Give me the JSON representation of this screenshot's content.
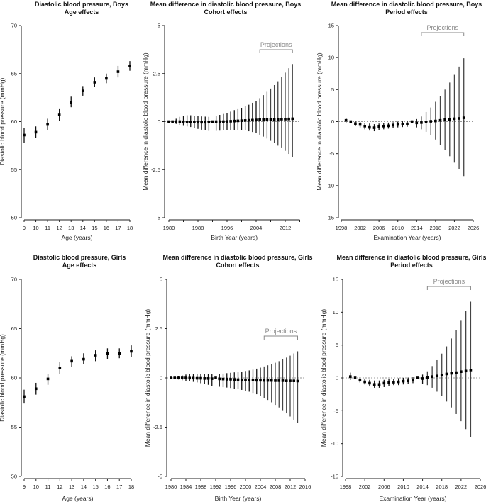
{
  "chart_data": [
    {
      "type": "scatter",
      "title": [
        "Diastolic blood pressure, Boys",
        "Age effects"
      ],
      "xlabel": "Age (years)",
      "ylabel": "Diastolic blood pressure (mmHg)",
      "xlim": [
        9,
        18
      ],
      "ylim": [
        50,
        70
      ],
      "yticks": [
        50,
        55,
        60,
        65,
        70
      ],
      "xticks": [
        9,
        10,
        11,
        12,
        13,
        14,
        15,
        16,
        17,
        18
      ],
      "xtick_labels": [
        "9",
        "10",
        "11",
        "12",
        "13",
        "14",
        "15",
        "16",
        "17",
        "18"
      ],
      "x_start": 9,
      "values": [
        58.6,
        58.9,
        59.7,
        60.7,
        62.0,
        63.2,
        64.1,
        64.5,
        65.2,
        65.8
      ],
      "lower": [
        57.8,
        58.3,
        59.1,
        60.1,
        61.5,
        62.7,
        63.6,
        64.0,
        64.6,
        65.3
      ],
      "upper": [
        59.3,
        59.5,
        60.3,
        61.3,
        62.6,
        63.7,
        64.6,
        65.0,
        65.8,
        66.3
      ]
    },
    {
      "type": "scatter",
      "title": [
        "Mean difference in diastolic blood pressure, Boys",
        "Cohort effects"
      ],
      "xlabel": "Birth Year (years)",
      "ylabel": "Mean difference in diastolic blood pressure (mmHg)",
      "xlim": [
        1980,
        2016
      ],
      "ylim": [
        -5,
        5
      ],
      "yticks": [
        -5,
        -2.5,
        0,
        2.5,
        5
      ],
      "xticks": [
        1980,
        1984,
        1988,
        1992,
        1996,
        2000,
        2004,
        2008,
        2012,
        2016
      ],
      "xtick_labels": [
        "1980",
        "",
        "1988",
        "",
        "1996",
        "",
        "2004",
        "",
        "2012",
        ""
      ],
      "x_start": 1980,
      "reference_line": 0,
      "projections": {
        "label": "Projections",
        "from": 2005,
        "to": 2014
      },
      "values": [
        0,
        0,
        0,
        0,
        -0.01,
        -0.02,
        -0.02,
        -0.02,
        -0.03,
        -0.03,
        -0.03,
        -0.02,
        0,
        0,
        0,
        0,
        0.01,
        0.02,
        0.03,
        0.04,
        0.05,
        0.06,
        0.07,
        0.08,
        0.09,
        0.1,
        0.1,
        0.11,
        0.11,
        0.12,
        0.12,
        0.13,
        0.13,
        0.14,
        0.15
      ],
      "lower": [
        0,
        -0.05,
        -0.12,
        -0.18,
        -0.22,
        -0.25,
        -0.28,
        -0.33,
        -0.38,
        -0.42,
        -0.45,
        -0.48,
        -0.02,
        -0.48,
        -0.47,
        -0.46,
        -0.45,
        -0.44,
        -0.43,
        -0.43,
        -0.44,
        -0.46,
        -0.5,
        -0.54,
        -0.6,
        -0.68,
        -0.78,
        -0.88,
        -1.0,
        -1.1,
        -1.25,
        -1.38,
        -1.52,
        -1.68,
        -1.85
      ],
      "upper": [
        0,
        0.05,
        0.15,
        0.25,
        0.3,
        0.33,
        0.33,
        0.3,
        0.28,
        0.27,
        0.26,
        0.25,
        0.02,
        0.3,
        0.35,
        0.4,
        0.45,
        0.52,
        0.6,
        0.65,
        0.72,
        0.8,
        0.88,
        0.98,
        1.08,
        1.22,
        1.38,
        1.55,
        1.72,
        1.9,
        2.1,
        2.32,
        2.55,
        2.78,
        3.0
      ]
    },
    {
      "type": "scatter",
      "title": [
        "Mean difference in diastolic blood pressure, Boys",
        "Period effects"
      ],
      "xlabel": "Examination Year (years)",
      "ylabel": "Mean difference in diastolic blood pressure (mmHg)",
      "xlim": [
        1998,
        2026
      ],
      "ylim": [
        -15,
        15
      ],
      "yticks": [
        -15,
        -10,
        -5,
        0,
        5,
        10,
        15
      ],
      "xticks": [
        1998,
        2002,
        2006,
        2010,
        2014,
        2018,
        2022,
        2026
      ],
      "xtick_labels": [
        "1998",
        "2002",
        "2006",
        "2010",
        "2014",
        "2018",
        "2022",
        "2026"
      ],
      "x_start": 1999,
      "reference_line": 0,
      "projections": {
        "label": "Projections",
        "from": 2015,
        "to": 2024
      },
      "values": [
        0.2,
        0,
        -0.3,
        -0.45,
        -0.7,
        -0.9,
        -0.95,
        -0.8,
        -0.7,
        -0.65,
        -0.55,
        -0.45,
        -0.4,
        -0.35,
        0,
        -0.2,
        -0.15,
        -0.05,
        0.05,
        0.1,
        0.2,
        0.3,
        0.35,
        0.45,
        0.5,
        0.6
      ],
      "lower": [
        -0.2,
        -0.05,
        -0.7,
        -0.9,
        -1.2,
        -1.4,
        -1.5,
        -1.3,
        -1.2,
        -1.1,
        -1.0,
        -0.9,
        -0.85,
        -0.8,
        -0.05,
        -0.9,
        -1.2,
        -1.6,
        -2.1,
        -2.8,
        -3.6,
        -4.4,
        -5.4,
        -6.4,
        -7.4,
        -8.5
      ],
      "upper": [
        0.6,
        0.05,
        0.1,
        -0.05,
        -0.2,
        -0.3,
        -0.4,
        -0.3,
        -0.2,
        -0.15,
        -0.1,
        0,
        0.05,
        0.1,
        0.05,
        0.4,
        0.8,
        1.5,
        2.2,
        3.1,
        4.0,
        5.0,
        6.1,
        7.3,
        8.6,
        9.9
      ]
    },
    {
      "type": "scatter",
      "title": [
        "Diastolic blood pressure, Girls",
        "Age effects"
      ],
      "xlabel": "Age (years)",
      "ylabel": "Diastolic blood pressure (mmHg)",
      "xlim": [
        9,
        18
      ],
      "ylim": [
        50,
        70
      ],
      "yticks": [
        50,
        55,
        60,
        65,
        70
      ],
      "xticks": [
        9,
        10,
        11,
        12,
        13,
        14,
        15,
        16,
        17,
        18
      ],
      "xtick_labels": [
        "9",
        "10",
        "11",
        "12",
        "13",
        "14",
        "15",
        "16",
        "17",
        "18"
      ],
      "x_start": 9,
      "values": [
        58.1,
        58.9,
        59.9,
        61.0,
        61.7,
        61.9,
        62.3,
        62.5,
        62.5,
        62.7
      ],
      "lower": [
        57.4,
        58.3,
        59.3,
        60.4,
        61.1,
        61.4,
        61.7,
        61.9,
        62.0,
        62.1
      ],
      "upper": [
        58.8,
        59.5,
        60.4,
        61.6,
        62.2,
        62.5,
        62.8,
        63.0,
        63.0,
        63.3
      ]
    },
    {
      "type": "scatter",
      "title": [
        "Mean difference in diastolic blood pressure, Girls",
        "Cohort effects"
      ],
      "xlabel": "Birth Year (years)",
      "ylabel": "Mean difference in diastolic blood pressure (mmHg)",
      "xlim": [
        1980,
        2016
      ],
      "ylim": [
        -5,
        5
      ],
      "yticks": [
        -5,
        -2.5,
        0,
        2.5,
        5
      ],
      "xticks": [
        1980,
        1984,
        1988,
        1992,
        1996,
        2000,
        2004,
        2008,
        2012,
        2016
      ],
      "xtick_labels": [
        "1980",
        "1984",
        "1988",
        "1992",
        "1996",
        "2000",
        "2004",
        "2008",
        "2012",
        "2016"
      ],
      "x_start": 1980,
      "reference_line": 0,
      "projections": {
        "label": "Projections",
        "from": 2005,
        "to": 2014
      },
      "values": [
        0,
        0,
        0,
        0,
        0,
        -0.01,
        -0.01,
        -0.02,
        -0.02,
        -0.03,
        -0.03,
        -0.04,
        0,
        -0.05,
        -0.06,
        -0.07,
        -0.07,
        -0.08,
        -0.09,
        -0.1,
        -0.1,
        -0.11,
        -0.11,
        -0.12,
        -0.12,
        -0.13,
        -0.13,
        -0.13,
        -0.14,
        -0.14,
        -0.14,
        -0.15,
        -0.15,
        -0.15,
        -0.16
      ],
      "lower": [
        0,
        -0.03,
        -0.08,
        -0.12,
        -0.15,
        -0.18,
        -0.2,
        -0.23,
        -0.27,
        -0.31,
        -0.35,
        -0.4,
        -0.02,
        -0.45,
        -0.47,
        -0.49,
        -0.51,
        -0.54,
        -0.57,
        -0.61,
        -0.65,
        -0.7,
        -0.76,
        -0.83,
        -0.92,
        -1.02,
        -1.12,
        -1.24,
        -1.37,
        -1.5,
        -1.64,
        -1.8,
        -1.96,
        -2.12,
        -2.3
      ],
      "upper": [
        0,
        0.03,
        0.08,
        0.13,
        0.17,
        0.2,
        0.2,
        0.2,
        0.2,
        0.2,
        0.2,
        0.2,
        0.02,
        0.2,
        0.22,
        0.24,
        0.26,
        0.28,
        0.3,
        0.32,
        0.35,
        0.38,
        0.42,
        0.47,
        0.52,
        0.58,
        0.64,
        0.7,
        0.77,
        0.85,
        0.94,
        1.03,
        1.13,
        1.24,
        1.35
      ]
    },
    {
      "type": "scatter",
      "title": [
        "Mean difference in diastolic blood pressure, Girls",
        "Period effects"
      ],
      "xlabel": "Examination Year (years)",
      "ylabel": "Mean difference in diastolic blood pressure (mmHg)",
      "xlim": [
        1998,
        2026
      ],
      "ylim": [
        -15,
        15
      ],
      "yticks": [
        -15,
        -10,
        -5,
        0,
        5,
        10,
        15
      ],
      "xticks": [
        1998,
        2002,
        2006,
        2010,
        2014,
        2018,
        2022,
        2026
      ],
      "xtick_labels": [
        "1998",
        "2002",
        "2006",
        "2010",
        "2014",
        "2018",
        "2022",
        "2026"
      ],
      "x_start": 1999,
      "reference_line": 0,
      "projections": {
        "label": "Projections",
        "from": 2015,
        "to": 2024
      },
      "values": [
        0.2,
        0,
        -0.35,
        -0.6,
        -0.8,
        -1.0,
        -1.0,
        -0.8,
        -0.7,
        -0.65,
        -0.6,
        -0.5,
        -0.45,
        -0.35,
        0,
        -0.1,
        0.05,
        0.2,
        0.3,
        0.45,
        0.6,
        0.7,
        0.8,
        0.95,
        1.05,
        1.2
      ],
      "lower": [
        -0.3,
        -0.05,
        -0.7,
        -1.0,
        -1.3,
        -1.5,
        -1.5,
        -1.4,
        -1.2,
        -1.1,
        -1.1,
        -1.0,
        -0.9,
        -0.8,
        -0.05,
        -0.9,
        -1.1,
        -1.5,
        -2.1,
        -2.8,
        -3.6,
        -4.5,
        -5.5,
        -6.6,
        -7.8,
        -9.0
      ],
      "upper": [
        0.8,
        0.05,
        0.1,
        -0.1,
        -0.3,
        -0.4,
        -0.4,
        -0.3,
        -0.2,
        -0.15,
        -0.05,
        0,
        0.05,
        0.1,
        0.05,
        0.5,
        1.0,
        1.8,
        2.7,
        3.7,
        4.8,
        6.0,
        7.3,
        8.7,
        10.2,
        11.6
      ]
    }
  ]
}
